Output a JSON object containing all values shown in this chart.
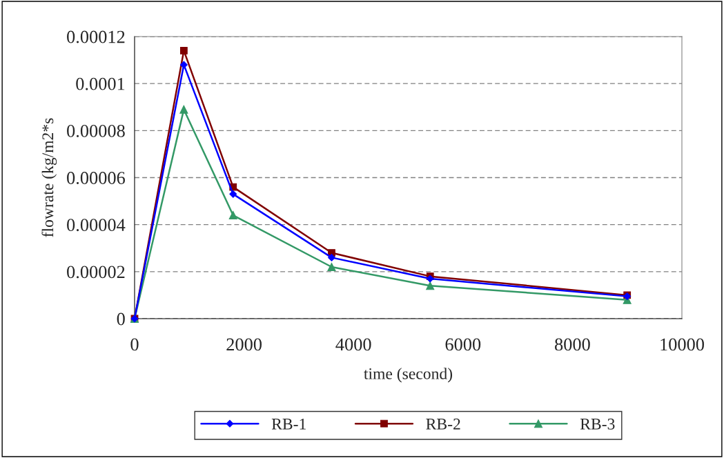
{
  "chart_data": {
    "type": "line",
    "xlabel": "time (second)",
    "ylabel": "flowrate (kg/m2*s",
    "x": [
      0,
      900,
      1800,
      3600,
      5400,
      9000
    ],
    "series": [
      {
        "name": "RB-1",
        "color": "#0000ff",
        "marker": "diamond",
        "values": [
          0,
          0.000108,
          5.3e-05,
          2.6e-05,
          1.7e-05,
          9.5e-06
        ]
      },
      {
        "name": "RB-2",
        "color": "#800000",
        "marker": "square",
        "values": [
          0,
          0.000114,
          5.6e-05,
          2.8e-05,
          1.8e-05,
          1e-05
        ]
      },
      {
        "name": "RB-3",
        "color": "#339966",
        "marker": "triangle",
        "values": [
          0,
          8.9e-05,
          4.4e-05,
          2.2e-05,
          1.4e-05,
          8e-06
        ]
      }
    ],
    "xlim": [
      0,
      10000
    ],
    "xticks": [
      0,
      2000,
      4000,
      6000,
      8000,
      10000
    ],
    "ylim": [
      0,
      0.00012
    ],
    "yticks": [
      {
        "value": 0,
        "label": "0"
      },
      {
        "value": 2e-05,
        "label": "0.00002"
      },
      {
        "value": 4e-05,
        "label": "0.00004"
      },
      {
        "value": 6e-05,
        "label": "0.00006"
      },
      {
        "value": 8e-05,
        "label": "0.00008"
      },
      {
        "value": 0.0001,
        "label": "0.0001"
      },
      {
        "value": 0.00012,
        "label": "0.00012"
      }
    ],
    "grid": "y",
    "legend": "bottom",
    "line_style": "solid"
  }
}
